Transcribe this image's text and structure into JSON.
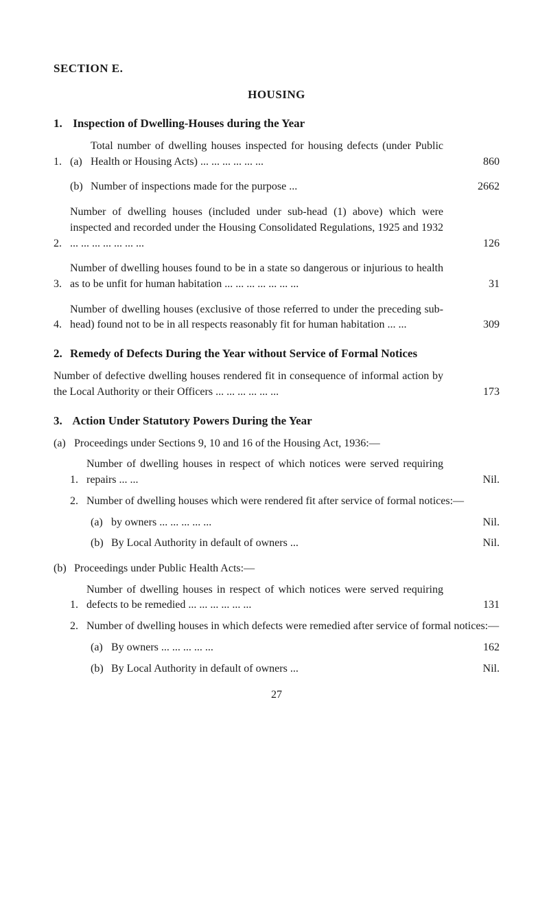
{
  "section_label": "SECTION E.",
  "title": "HOUSING",
  "h1": {
    "num": "1.",
    "text": "Inspection of Dwelling-Houses during the Year"
  },
  "i1": {
    "marker": "1.",
    "a_marker": "(a)",
    "a_text": "Total number of dwelling houses inspected for housing defects (under Public Health or Housing Acts)        ...       ...       ...       ...       ...       ...",
    "a_val": "860",
    "b_marker": "(b)",
    "b_text": "Number of inspections made for the purpose     ...",
    "b_val": "2662"
  },
  "i2": {
    "marker": "2.",
    "text": "Number of dwelling houses (included under sub-head (1) above) which were inspected and recorded under the Housing Consolidated Regulations, 1925 and 1932      ... ...      ...      ...      ...      ...      ...",
    "val": "126"
  },
  "i3": {
    "marker": "3.",
    "text": "Number of dwelling houses found to be in a state so dangerous or injurious to health as to be unfit for human habitation ...     ...     ...     ...     ...     ...     ...",
    "val": "31"
  },
  "i4": {
    "marker": "4.",
    "text": "Number of dwelling houses (exclusive of those referred to under the preceding sub-head) found not to be in all respects reasonably fit for human habitation ...     ...",
    "val": "309"
  },
  "h2": {
    "num": "2.",
    "text": "Remedy of Defects During the Year without Service of Formal Notices"
  },
  "r2": {
    "text": "Number of defective dwelling houses rendered fit in consequence of informal action by the Local Authority or their Officers    ...     ...     ...     ...     ...     ...",
    "val": "173"
  },
  "h3": {
    "num": "3.",
    "text": "Action Under Statutory Powers During the Year"
  },
  "a": {
    "marker": "(a)",
    "lead": "Proceedings under Sections 9, 10 and 16 of the Housing Act, 1936:—",
    "p1_marker": "1.",
    "p1_text": "Number of dwelling houses in respect of which notices were served requiring repairs      ...     ...",
    "p1_val": "Nil.",
    "p2_marker": "2.",
    "p2_text": "Number of dwelling houses which were rendered fit after service of formal notices:—",
    "p2a_marker": "(a)",
    "p2a_text": "by owners        ...     ...     ...     ...     ...",
    "p2a_val": "Nil.",
    "p2b_marker": "(b)",
    "p2b_text": "By Local Authority in default of owners    ...",
    "p2b_val": "Nil."
  },
  "b": {
    "marker": "(b)",
    "lead": "Proceedings under Public Health Acts:—",
    "p1_marker": "1.",
    "p1_text": "Number of dwelling houses in respect of which notices were served requiring defects to be remedied      ...     ...     ...     ...     ...     ...",
    "p1_val": "131",
    "p2_marker": "2.",
    "p2_text": "Number of dwelling houses in which defects were remedied after service of formal notices:—",
    "p2a_marker": "(a)",
    "p2a_text": "By owners       ...     ...     ...     ...     ...",
    "p2a_val": "162",
    "p2b_marker": "(b)",
    "p2b_text": "By Local Authority in default of owners    ...",
    "p2b_val": "Nil."
  },
  "page_number": "27"
}
